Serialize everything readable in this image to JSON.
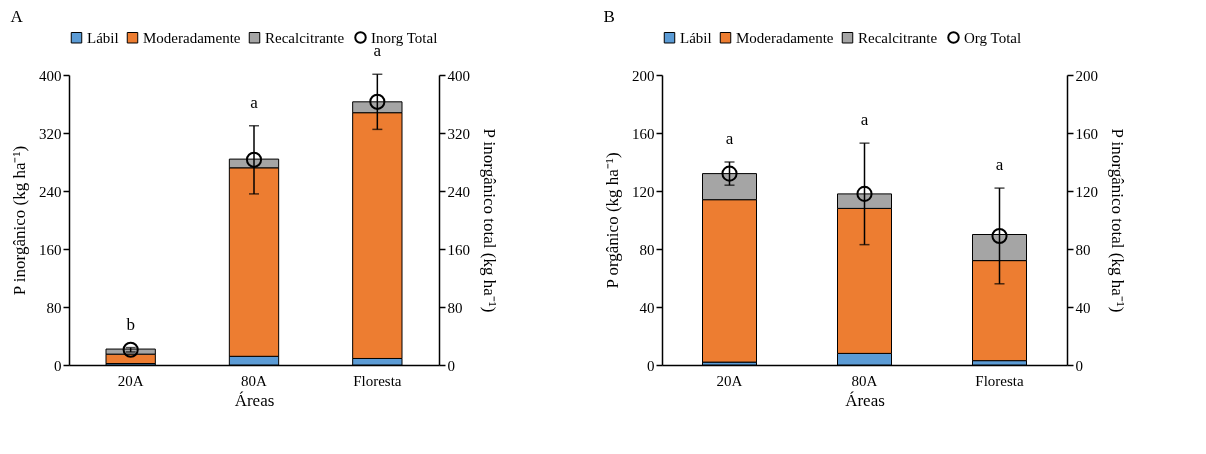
{
  "chart_data": [
    {
      "type": "bar",
      "title": "A",
      "xlabel": "Áreas",
      "ylabel": "P inorgânico (kg ha⁻¹)",
      "y2label": "P inorgânico total (kg ha⁻¹)",
      "categories": [
        "20A",
        "80A",
        "Floresta"
      ],
      "stacked": true,
      "legend": "top",
      "ylim": [
        0,
        400
      ],
      "yticks": [
        0,
        80,
        160,
        240,
        320,
        400
      ],
      "y2lim": [
        0,
        400
      ],
      "y2ticks": [
        0,
        80,
        160,
        240,
        320,
        400
      ],
      "series": [
        {
          "name": "Lábil",
          "color": "#5b9bd5",
          "values": [
            2,
            12,
            9
          ]
        },
        {
          "name": "Moderadamente",
          "color": "#ed7d31",
          "values": [
            13,
            260,
            339
          ]
        },
        {
          "name": "Recalcitrante",
          "color": "#a5a5a5",
          "values": [
            7,
            12,
            15
          ]
        },
        {
          "name": "Inorg Total",
          "type": "scatter",
          "axis": "y2",
          "marker": "circle",
          "color": "#000000",
          "values": [
            21,
            283,
            363
          ],
          "errors": [
            3,
            47,
            38
          ]
        }
      ],
      "annotations": [
        {
          "text": "b",
          "x": "20A",
          "y": 24
        },
        {
          "text": "a",
          "x": "80A",
          "y": 330
        },
        {
          "text": "a",
          "x": "Floresta",
          "y": 401
        }
      ]
    },
    {
      "type": "bar",
      "title": "B",
      "xlabel": "Áreas",
      "ylabel": "P orgânico (kg ha⁻¹)",
      "y2label": "P inorgânico total (kg ha⁻¹)",
      "categories": [
        "20A",
        "80A",
        "Floresta"
      ],
      "stacked": true,
      "legend": "top",
      "ylim": [
        0,
        200
      ],
      "yticks": [
        0,
        40,
        80,
        120,
        160,
        200
      ],
      "y2lim": [
        0,
        200
      ],
      "y2ticks": [
        0,
        40,
        80,
        120,
        160,
        200
      ],
      "series": [
        {
          "name": "Lábil",
          "color": "#5b9bd5",
          "values": [
            2,
            8,
            3
          ]
        },
        {
          "name": "Moderadamente",
          "color": "#ed7d31",
          "values": [
            112,
            100,
            69
          ]
        },
        {
          "name": "Recalcitrante",
          "color": "#a5a5a5",
          "values": [
            18,
            10,
            18
          ]
        },
        {
          "name": "Org Total",
          "type": "scatter",
          "axis": "y2",
          "marker": "circle",
          "color": "#000000",
          "values": [
            132,
            118,
            89
          ],
          "errors": [
            8,
            35,
            33
          ]
        }
      ],
      "annotations": [
        {
          "text": "a",
          "x": "20A",
          "y": 140
        },
        {
          "text": "a",
          "x": "80A",
          "y": 153
        },
        {
          "text": "a",
          "x": "Floresta",
          "y": 122
        }
      ]
    }
  ]
}
